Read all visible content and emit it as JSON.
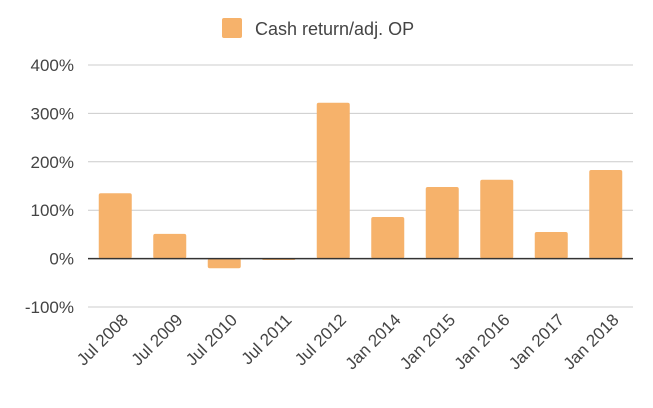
{
  "chart_data": {
    "type": "bar",
    "categories": [
      "Jul 2008",
      "Jul 2009",
      "Jul 2010",
      "Jul 2011",
      "Jul 2012",
      "Jan 2014",
      "Jan 2015",
      "Jan 2016",
      "Jan 2017",
      "Jan 2018"
    ],
    "series": [
      {
        "name": "Cash return/adj. OP",
        "values": [
          135,
          51,
          -20,
          -3,
          322,
          86,
          148,
          163,
          55,
          183
        ]
      }
    ],
    "yticks": [
      "400%",
      "300%",
      "200%",
      "100%",
      "0%",
      "-100%"
    ],
    "ytick_values": [
      400,
      300,
      200,
      100,
      0,
      -100
    ],
    "ylim": [
      -100,
      400
    ],
    "grid": true,
    "legend_position": "top",
    "colors": {
      "bar": "#f6b26b",
      "grid": "#cccccc",
      "zero_line": "#333333",
      "text": "#444444"
    }
  }
}
